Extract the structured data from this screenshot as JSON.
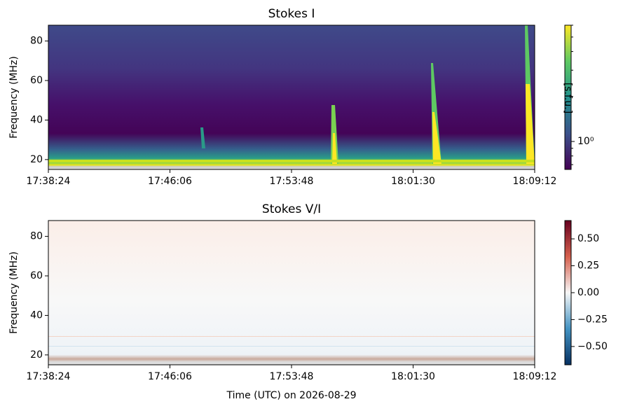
{
  "chart_data": [
    {
      "type": "heatmap",
      "title": "Stokes I",
      "ylabel": "Frequency (MHz)",
      "xlim": [
        63504,
        65352
      ],
      "xticks": [
        {
          "value": 63504,
          "label": "17:38:24"
        },
        {
          "value": 63966,
          "label": "17:46:06"
        },
        {
          "value": 64428,
          "label": "17:53:48"
        },
        {
          "value": 64890,
          "label": "18:01:30"
        },
        {
          "value": 65352,
          "label": "18:09:12"
        }
      ],
      "ylim": [
        15,
        88
      ],
      "yticks": [
        20,
        40,
        60,
        80
      ],
      "colorbar": {
        "label": "[s.f.u.]",
        "colormap": "viridis",
        "scale": "log",
        "lim": [
          0.65,
          6
        ],
        "ticks": [
          {
            "value": 1,
            "label": "10⁰"
          }
        ],
        "minor_ticks": [
          0.7,
          0.8,
          0.9,
          2,
          3,
          4,
          5,
          6
        ]
      }
    },
    {
      "type": "heatmap",
      "title": "Stokes V/I",
      "ylabel": "Frequency (MHz)",
      "xlabel": "Time (UTC) on 2026-08-29",
      "xlim": [
        63504,
        65352
      ],
      "xticks": [
        {
          "value": 63504,
          "label": "17:38:24"
        },
        {
          "value": 63966,
          "label": "17:46:06"
        },
        {
          "value": 64428,
          "label": "17:53:48"
        },
        {
          "value": 64890,
          "label": "18:01:30"
        },
        {
          "value": 65352,
          "label": "18:09:12"
        }
      ],
      "ylim": [
        15,
        88
      ],
      "yticks": [
        20,
        40,
        60,
        80
      ],
      "colorbar": {
        "colormap": "RdBu_r",
        "scale": "linear",
        "lim": [
          -0.67,
          0.67
        ],
        "ticks": [
          {
            "value": 0.5,
            "label": "0.50"
          },
          {
            "value": 0.25,
            "label": "0.25"
          },
          {
            "value": 0,
            "label": "0.00"
          },
          {
            "value": -0.25,
            "label": "−0.25"
          },
          {
            "value": -0.5,
            "label": "−0.50"
          }
        ]
      }
    }
  ]
}
